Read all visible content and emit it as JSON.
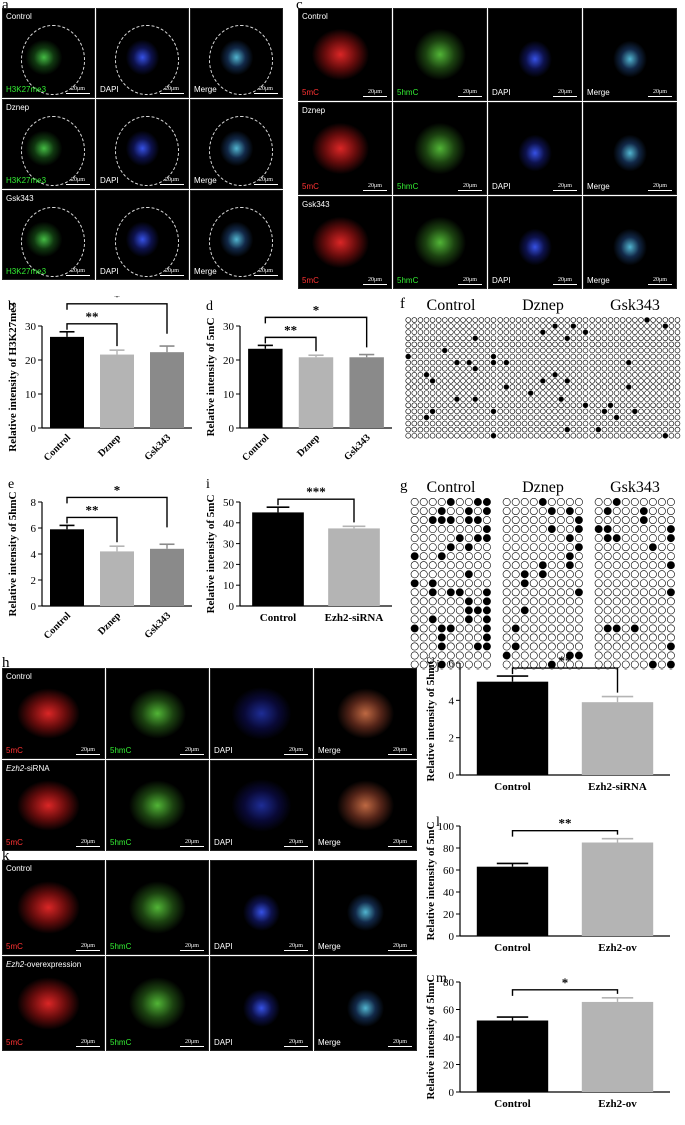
{
  "panels": {
    "a": {
      "letter": "a",
      "rows": [
        "Control",
        "Dznep",
        "Gsk343"
      ],
      "channels": [
        "H3K27me3",
        "DAPI",
        "Merge"
      ],
      "scale": "20μm"
    },
    "c": {
      "letter": "c",
      "rows": [
        "Control",
        "Dznep",
        "Gsk343"
      ],
      "channels": [
        "5mC",
        "5hmC",
        "DAPI",
        "Merge"
      ],
      "scale": "20μm"
    },
    "h": {
      "letter": "h",
      "rows": [
        "Control",
        "Ezh2-siRNA"
      ],
      "row_italic": [
        "",
        "Ezh2"
      ],
      "row_suffix": [
        "",
        "-siRNA"
      ],
      "channels": [
        "5mC",
        "5hmC",
        "DAPI",
        "Merge"
      ],
      "scale": "20μm"
    },
    "k": {
      "letter": "k",
      "rows": [
        "Control",
        "Ezh2-overexpression"
      ],
      "row_italic": [
        "",
        "Ezh2"
      ],
      "row_suffix": [
        "",
        "-overexpression"
      ],
      "channels": [
        "5mC",
        "5hmC",
        "DAPI",
        "Merge"
      ],
      "scale": "20μm"
    },
    "f": {
      "letter": "f",
      "groups": [
        "Control",
        "Dznep",
        "Gsk343"
      ]
    },
    "g": {
      "letter": "g",
      "groups": [
        "Control",
        "Dznep",
        "Gsk343"
      ]
    }
  },
  "colors": {
    "black": "#000000",
    "lightgray": "#b4b4b4",
    "midgray": "#8a8a8a",
    "red": "#ff3333",
    "green": "#33ee33",
    "white": "#ffffff"
  },
  "chart_data": [
    {
      "id": "b",
      "letter": "b",
      "type": "bar",
      "categories": [
        "Control",
        "Dznep",
        "Gsk343"
      ],
      "values": [
        26.8,
        21.6,
        22.3
      ],
      "errors": [
        1.5,
        1.3,
        1.8
      ],
      "ylabel": "Relative intensity of H3K27me3",
      "ylim": [
        0,
        30
      ],
      "yticks": [
        0,
        10,
        20,
        30
      ],
      "bar_colors": [
        "#000000",
        "#b4b4b4",
        "#8a8a8a"
      ],
      "significance": [
        {
          "from": 0,
          "to": 1,
          "label": "**"
        },
        {
          "from": 0,
          "to": 2,
          "label": "*"
        }
      ]
    },
    {
      "id": "d",
      "letter": "d",
      "type": "bar",
      "categories": [
        "Control",
        "Dznep",
        "Gsk343"
      ],
      "values": [
        23.3,
        20.8,
        20.8
      ],
      "errors": [
        1.0,
        0.6,
        0.8
      ],
      "ylabel": "Relative intensity of 5mC",
      "ylim": [
        0,
        30
      ],
      "yticks": [
        0,
        10,
        20,
        30
      ],
      "bar_colors": [
        "#000000",
        "#b4b4b4",
        "#8a8a8a"
      ],
      "significance": [
        {
          "from": 0,
          "to": 1,
          "label": "**"
        },
        {
          "from": 0,
          "to": 2,
          "label": "*"
        }
      ]
    },
    {
      "id": "e",
      "letter": "e",
      "type": "bar",
      "categories": [
        "Control",
        "Dznep",
        "Gsk343"
      ],
      "values": [
        5.9,
        4.2,
        4.4
      ],
      "errors": [
        0.3,
        0.4,
        0.35
      ],
      "ylabel": "Relative intensity of 5hmC",
      "ylim": [
        0,
        8
      ],
      "yticks": [
        0,
        2,
        4,
        6,
        8
      ],
      "bar_colors": [
        "#000000",
        "#b4b4b4",
        "#8a8a8a"
      ],
      "significance": [
        {
          "from": 0,
          "to": 1,
          "label": "**"
        },
        {
          "from": 0,
          "to": 2,
          "label": "*"
        }
      ]
    },
    {
      "id": "i",
      "letter": "i",
      "type": "bar",
      "categories": [
        "Control",
        "Ezh2-siRNA"
      ],
      "values": [
        45,
        37.3
      ],
      "errors": [
        2.5,
        1.0
      ],
      "ylabel": "Relative intensity of 5mC",
      "ylim": [
        0,
        50
      ],
      "yticks": [
        0,
        10,
        20,
        30,
        40,
        50
      ],
      "bar_colors": [
        "#000000",
        "#b4b4b4"
      ],
      "significance": [
        {
          "from": 0,
          "to": 1,
          "label": "***"
        }
      ]
    },
    {
      "id": "j",
      "letter": "j",
      "type": "bar",
      "categories": [
        "Control",
        "Ezh2-siRNA"
      ],
      "values": [
        5.0,
        3.9
      ],
      "errors": [
        0.3,
        0.3
      ],
      "ylabel": "Relative intensity of 5hmC",
      "ylim": [
        0,
        6
      ],
      "yticks": [
        0,
        2,
        4,
        6
      ],
      "bar_colors": [
        "#000000",
        "#b4b4b4"
      ],
      "significance": [
        {
          "from": 0,
          "to": 1,
          "label": "**"
        }
      ]
    },
    {
      "id": "l",
      "letter": "l",
      "type": "bar",
      "categories": [
        "Control",
        "Ezh2-ov"
      ],
      "values": [
        63,
        85
      ],
      "errors": [
        3,
        3.5
      ],
      "ylabel": "Relative intensity of 5mC",
      "ylim": [
        0,
        100
      ],
      "yticks": [
        0,
        20,
        40,
        60,
        80,
        100
      ],
      "bar_colors": [
        "#000000",
        "#b4b4b4"
      ],
      "significance": [
        {
          "from": 0,
          "to": 1,
          "label": "**"
        }
      ]
    },
    {
      "id": "m",
      "letter": "m",
      "type": "bar",
      "categories": [
        "Control",
        "Ezh2-ov"
      ],
      "values": [
        52,
        65.5
      ],
      "errors": [
        2.5,
        3
      ],
      "ylabel": "Relative intensity of 5hmC",
      "ylim": [
        0,
        80
      ],
      "yticks": [
        0,
        20,
        40,
        60,
        80
      ],
      "bar_colors": [
        "#000000",
        "#b4b4b4"
      ],
      "significance": [
        {
          "from": 0,
          "to": 1,
          "label": "*"
        }
      ]
    }
  ]
}
